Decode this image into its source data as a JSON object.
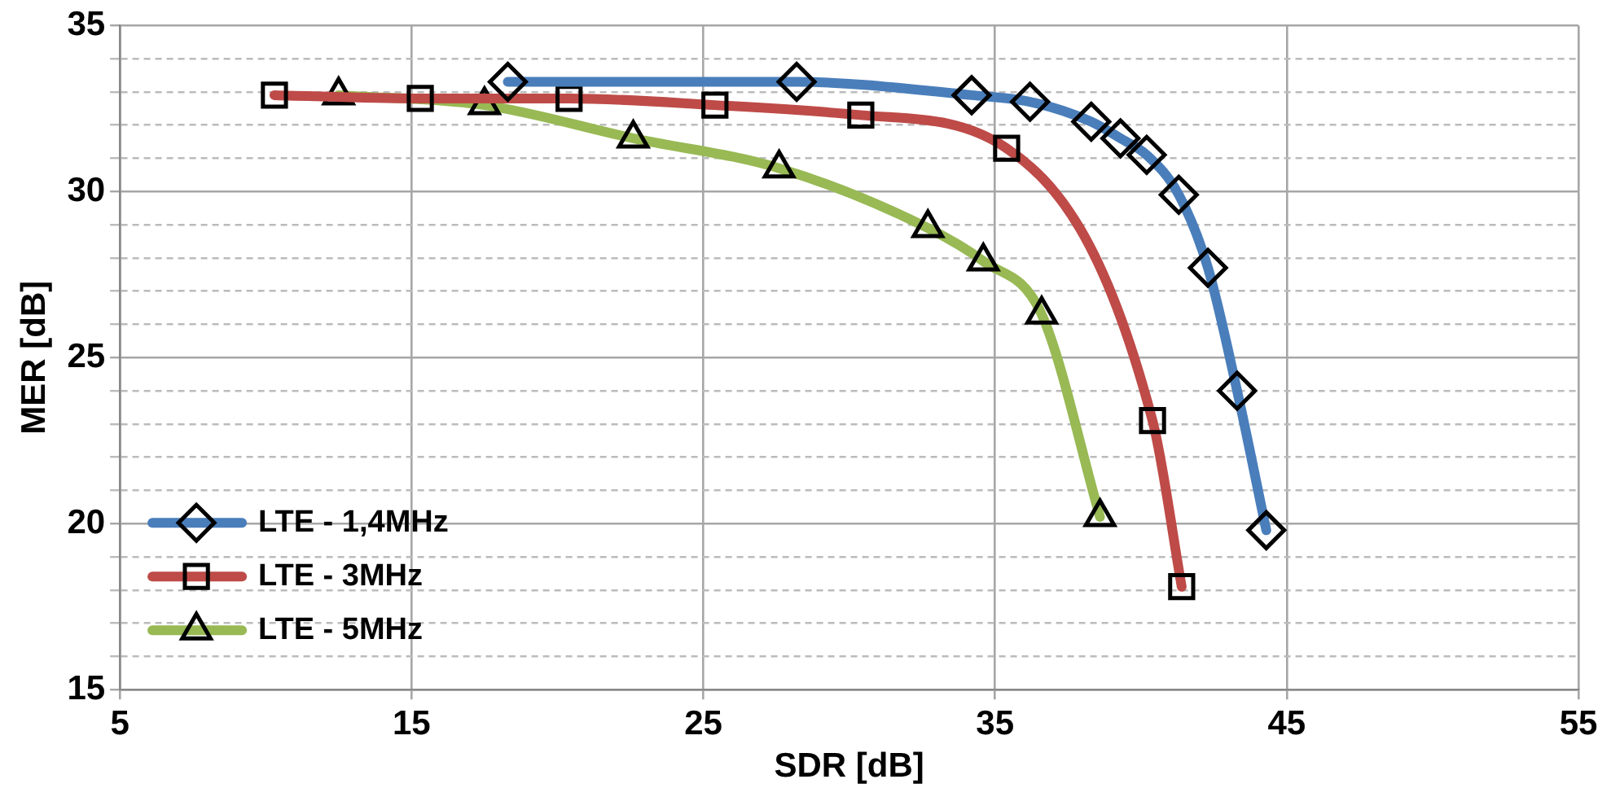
{
  "chart_data": {
    "type": "line",
    "xlabel": "SDR [dB]",
    "ylabel": "MER [dB]",
    "xlim": [
      5,
      55
    ],
    "xticks": [
      5,
      15,
      25,
      35,
      45,
      55
    ],
    "ylim": [
      15,
      35
    ],
    "yticks": [
      15,
      {
        "value": 16,
        "label": null
      },
      {
        "value": 17,
        "label": null
      },
      {
        "value": 18,
        "label": null
      },
      {
        "value": 19,
        "label": null
      },
      20,
      {
        "value": 21,
        "label": null
      },
      {
        "value": 22,
        "label": null
      },
      {
        "value": 23,
        "label": null
      },
      {
        "value": 24,
        "label": null
      },
      25,
      {
        "value": 26,
        "label": null
      },
      {
        "value": 27,
        "label": null
      },
      {
        "value": 28,
        "label": null
      },
      {
        "value": 29,
        "label": null
      },
      30,
      {
        "value": 31,
        "label": null
      },
      {
        "value": 32,
        "label": null
      },
      {
        "value": 33,
        "label": null
      },
      {
        "value": 34,
        "label": null
      },
      35
    ],
    "grid": true,
    "legend": "bottom left",
    "line_style": "solid",
    "series": [
      {
        "name": "LTE - 1,4MHz",
        "color": "#4a7ebb",
        "marker": "diamond",
        "x": [
          18.3,
          28.2,
          34.2,
          36.2,
          38.3,
          39.3,
          40.2,
          41.3,
          42.3,
          43.3,
          44.3
        ],
        "values": [
          33.3,
          33.3,
          32.9,
          32.7,
          32.1,
          31.6,
          31.1,
          29.9,
          27.7,
          24.0,
          19.8
        ]
      },
      {
        "name": "LTE - 3MHz",
        "color": "#be4b48",
        "marker": "square",
        "x": [
          10.3,
          15.3,
          20.4,
          25.4,
          30.4,
          35.4,
          40.4,
          41.4
        ],
        "values": [
          32.9,
          32.8,
          32.8,
          32.6,
          32.3,
          31.3,
          23.1,
          18.1
        ]
      },
      {
        "name": "LTE - 5MHz",
        "color": "#98b954",
        "marker": "triangle",
        "x": [
          12.5,
          17.5,
          22.6,
          27.6,
          32.7,
          34.6,
          36.6,
          38.6
        ],
        "values": [
          32.9,
          32.6,
          31.6,
          30.7,
          28.9,
          27.9,
          26.3,
          20.2
        ]
      }
    ]
  }
}
